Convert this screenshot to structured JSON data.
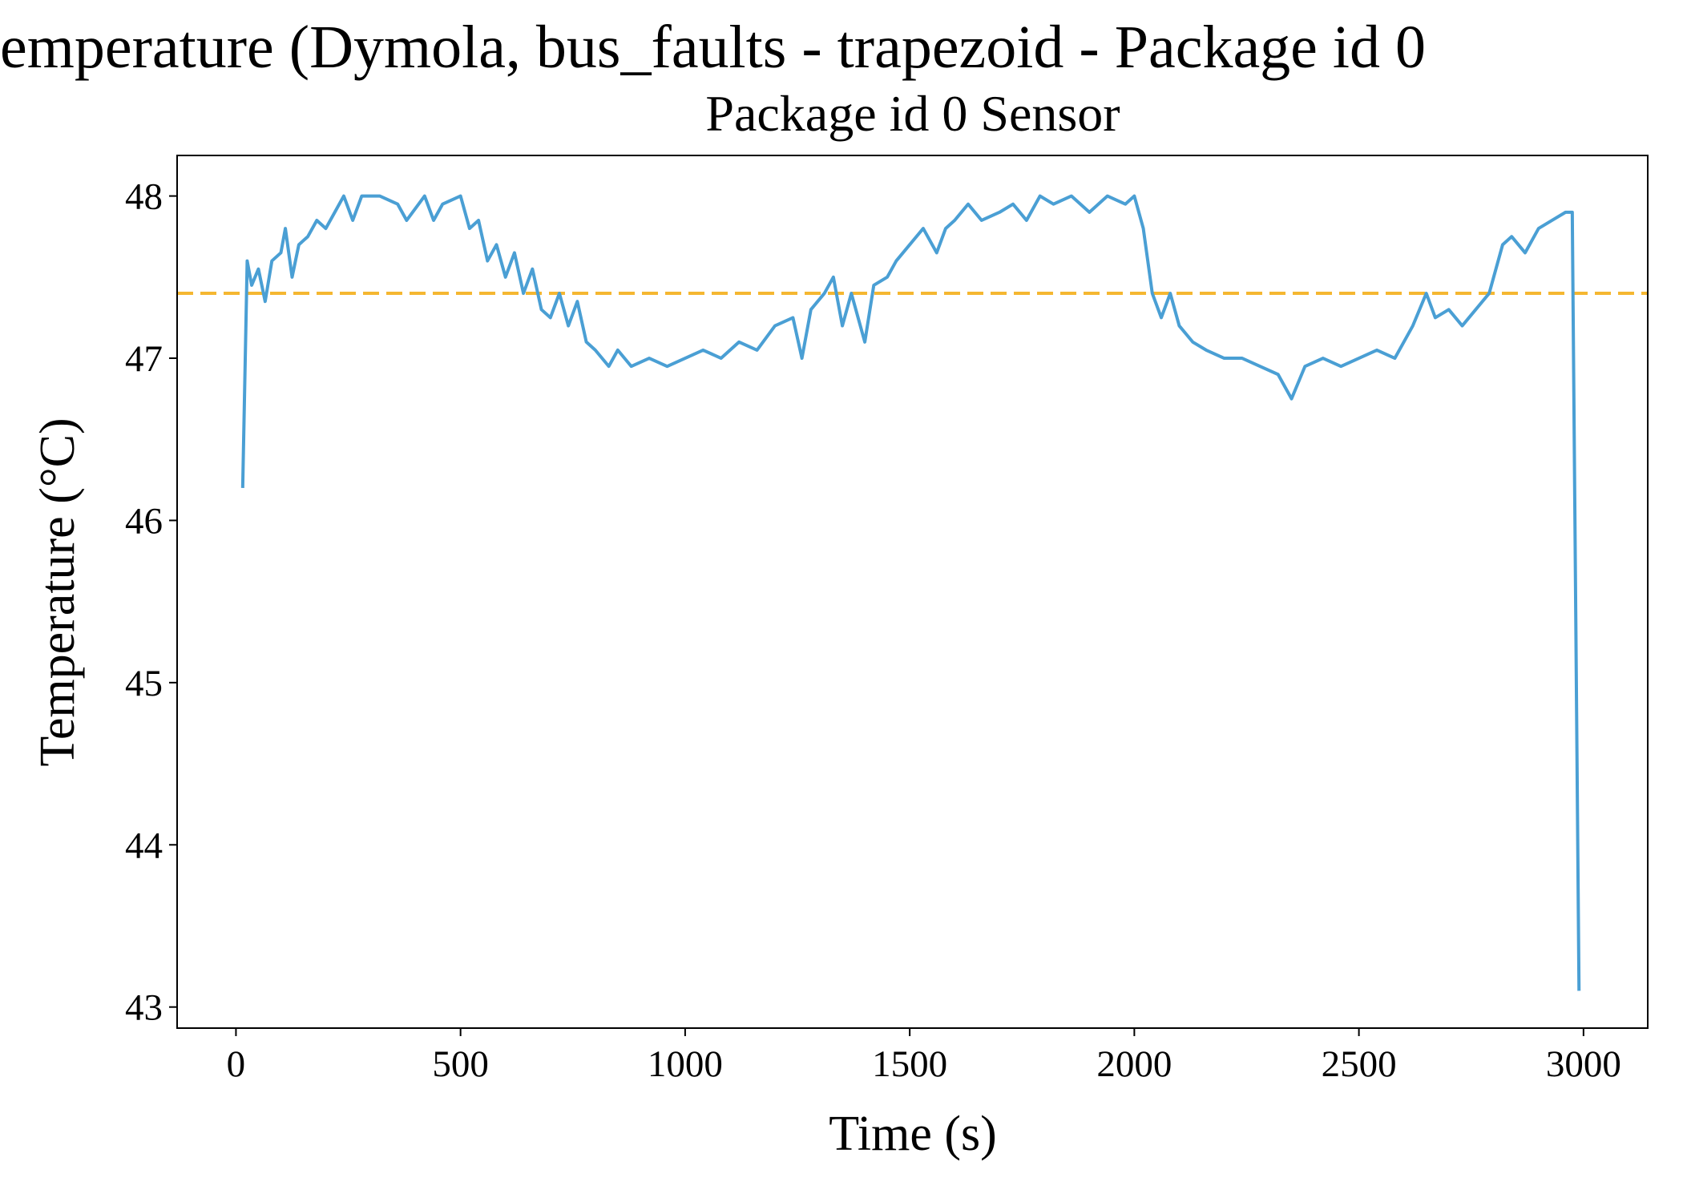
{
  "chart_data": {
    "type": "line",
    "title": "emperature (Dymola, bus_faults - trapezoid - Package id 0",
    "subtitle": "Package id 0 Sensor",
    "x_label": "Time (s)",
    "y_label": "Temperature (°C)",
    "xlim": [
      -131,
      3143
    ],
    "ylim": [
      42.87,
      48.25
    ],
    "xticks": [
      0,
      500,
      1000,
      1500,
      2000,
      2500,
      3000
    ],
    "yticks": [
      43,
      44,
      45,
      46,
      47,
      48
    ],
    "grid": false,
    "reference_line": {
      "value": 47.4,
      "color": "#f5b731"
    },
    "x": [
      15,
      25,
      35,
      50,
      65,
      80,
      100,
      110,
      125,
      140,
      160,
      180,
      200,
      220,
      240,
      260,
      280,
      320,
      360,
      380,
      420,
      440,
      460,
      500,
      520,
      540,
      560,
      580,
      600,
      620,
      640,
      660,
      680,
      700,
      720,
      740,
      760,
      780,
      800,
      830,
      850,
      880,
      920,
      960,
      1000,
      1040,
      1080,
      1120,
      1160,
      1200,
      1240,
      1260,
      1280,
      1310,
      1330,
      1350,
      1370,
      1400,
      1420,
      1450,
      1470,
      1500,
      1530,
      1560,
      1580,
      1600,
      1630,
      1660,
      1700,
      1730,
      1760,
      1790,
      1820,
      1860,
      1900,
      1940,
      1980,
      2000,
      2020,
      2040,
      2060,
      2080,
      2100,
      2130,
      2160,
      2200,
      2240,
      2280,
      2320,
      2350,
      2380,
      2420,
      2460,
      2500,
      2540,
      2580,
      2620,
      2650,
      2670,
      2700,
      2730,
      2760,
      2790,
      2820,
      2840,
      2870,
      2900,
      2930,
      2960,
      2975,
      2990
    ],
    "series": [
      {
        "color": "#4a9fd4",
        "values": [
          46.2,
          47.6,
          47.45,
          47.55,
          47.35,
          47.6,
          47.65,
          47.8,
          47.5,
          47.7,
          47.75,
          47.85,
          47.8,
          47.9,
          48.0,
          47.85,
          48.0,
          48.0,
          47.95,
          47.85,
          48.0,
          47.85,
          47.95,
          48.0,
          47.8,
          47.85,
          47.6,
          47.7,
          47.5,
          47.65,
          47.4,
          47.55,
          47.3,
          47.25,
          47.4,
          47.2,
          47.35,
          47.1,
          47.05,
          46.95,
          47.05,
          46.95,
          47.0,
          46.95,
          47.0,
          47.05,
          47.0,
          47.1,
          47.05,
          47.2,
          47.25,
          47.0,
          47.3,
          47.4,
          47.5,
          47.2,
          47.4,
          47.1,
          47.45,
          47.5,
          47.6,
          47.7,
          47.8,
          47.65,
          47.8,
          47.85,
          47.95,
          47.85,
          47.9,
          47.95,
          47.85,
          48.0,
          47.95,
          48.0,
          47.9,
          48.0,
          47.95,
          48.0,
          47.8,
          47.4,
          47.25,
          47.4,
          47.2,
          47.1,
          47.05,
          47.0,
          47.0,
          46.95,
          46.9,
          46.75,
          46.95,
          47.0,
          46.95,
          47.0,
          47.05,
          47.0,
          47.2,
          47.4,
          47.25,
          47.3,
          47.2,
          47.3,
          47.4,
          47.7,
          47.75,
          47.65,
          47.8,
          47.85,
          47.9,
          47.9,
          43.1
        ]
      }
    ]
  }
}
